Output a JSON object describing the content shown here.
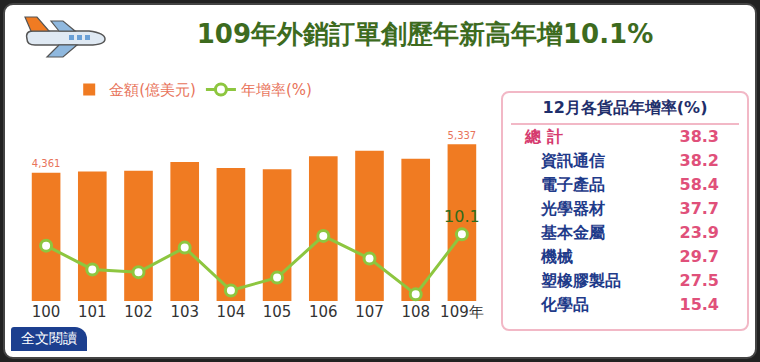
{
  "chart_data": {
    "type": "bar",
    "title": "109年外銷訂單創歷年新高年增10.1%",
    "categories": [
      "100",
      "101",
      "102",
      "103",
      "104",
      "105",
      "106",
      "107",
      "108",
      "109年"
    ],
    "series": [
      {
        "name": "金額(億美元)",
        "type": "bar",
        "color": "#f07b22",
        "values": [
          4361,
          4410,
          4429,
          4728,
          4526,
          4483,
          4928,
          5115,
          4842,
          5337
        ],
        "value_labels": [
          "4,361",
          null,
          null,
          null,
          null,
          null,
          null,
          null,
          null,
          "5,337"
        ]
      },
      {
        "name": "年增率(%)",
        "type": "line",
        "axis": "y2",
        "color": "#8dc63f",
        "marker": "circle",
        "values": [
          7.2,
          1.1,
          0.4,
          6.7,
          -4.3,
          -1.0,
          9.7,
          3.9,
          -5.3,
          10.1
        ],
        "value_labels": [
          null,
          null,
          null,
          null,
          null,
          null,
          null,
          null,
          null,
          "10.1"
        ]
      }
    ],
    "ylim": [
      0,
      6500
    ],
    "y2lim": [
      -7,
      42
    ],
    "data_labels": true,
    "tick_labels": "x",
    "grid": false,
    "legend": "top left"
  },
  "table": {
    "title": "12月各貨品年增率(%)",
    "rows": [
      [
        "總 計",
        38.3
      ],
      [
        "資訊通信",
        38.2
      ],
      [
        "電子產品",
        58.4
      ],
      [
        "光學器材",
        37.7
      ],
      [
        "基本金屬",
        23.9
      ],
      [
        "機械",
        29.7
      ],
      [
        "塑橡膠製品",
        27.5
      ],
      [
        "化學品",
        15.4
      ]
    ]
  },
  "button": "全文閱讀"
}
